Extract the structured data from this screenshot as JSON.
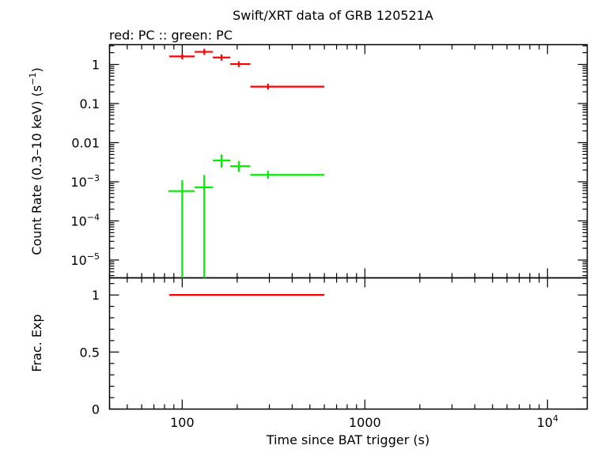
{
  "chart_data": {
    "type": "scatter",
    "title": "Swift/XRT data of GRB 120521A",
    "subtitle": "red: PC  :: green: PC",
    "xlabel": "Time since BAT trigger (s)",
    "x_scale": "log",
    "xlim": [
      40,
      16500
    ],
    "x_ticks": [
      {
        "value": 100,
        "label": "100"
      },
      {
        "value": 1000,
        "label": "1000"
      },
      {
        "value": 10000,
        "label": "10",
        "sup": "4"
      }
    ],
    "panels": [
      {
        "name": "rate",
        "ylabel": "Count Rate (0.3–10 keV) (s",
        "ylabel_sup": "−1",
        "ylabel_end": ")",
        "y_scale": "log",
        "ylim": [
          3.5e-06,
          3.2
        ],
        "y_ticks": [
          {
            "value": 1,
            "label": "1"
          },
          {
            "value": 0.1,
            "label": "0.1"
          },
          {
            "value": 0.01,
            "label": "0.01"
          },
          {
            "value": 0.001,
            "label": "10",
            "sup": "−3"
          },
          {
            "value": 0.0001,
            "label": "10",
            "sup": "−4"
          },
          {
            "value": 1e-05,
            "label": "10",
            "sup": "−5"
          }
        ],
        "series": [
          {
            "color": "#ff0000",
            "points": [
              {
                "x": 100,
                "xlo": 85,
                "xhi": 117,
                "y": 1.6,
                "ylo": 1.35,
                "yhi": 1.85
              },
              {
                "x": 132,
                "xlo": 117,
                "xhi": 147,
                "y": 2.1,
                "ylo": 1.75,
                "yhi": 2.5
              },
              {
                "x": 164,
                "xlo": 147,
                "xhi": 183,
                "y": 1.5,
                "ylo": 1.25,
                "yhi": 1.8
              },
              {
                "x": 204,
                "xlo": 183,
                "xhi": 236,
                "y": 1.02,
                "ylo": 0.86,
                "yhi": 1.2
              },
              {
                "x": 295,
                "xlo": 236,
                "xhi": 600,
                "y": 0.27,
                "ylo": 0.23,
                "yhi": 0.32
              }
            ]
          },
          {
            "color": "#00ee00",
            "points": [
              {
                "x": 100,
                "xlo": 84,
                "xhi": 117,
                "y": 0.00058,
                "ylo": 1e-06,
                "yhi": 0.0011
              },
              {
                "x": 132,
                "xlo": 117,
                "xhi": 147,
                "y": 0.00072,
                "ylo": 1e-06,
                "yhi": 0.0015
              },
              {
                "x": 164,
                "xlo": 147,
                "xhi": 183,
                "y": 0.0035,
                "ylo": 0.0023,
                "yhi": 0.005
              },
              {
                "x": 204,
                "xlo": 183,
                "xhi": 236,
                "y": 0.0025,
                "ylo": 0.0018,
                "yhi": 0.0034
              },
              {
                "x": 295,
                "xlo": 236,
                "xhi": 600,
                "y": 0.0015,
                "ylo": 0.0012,
                "yhi": 0.0019
              }
            ]
          }
        ]
      },
      {
        "name": "fracexp",
        "ylabel": "Frac. Exp",
        "y_scale": "linear",
        "ylim": [
          0,
          1.15
        ],
        "y_ticks": [
          {
            "value": 1,
            "label": "1"
          },
          {
            "value": 0.5,
            "label": "0.5"
          },
          {
            "value": 0,
            "label": "0"
          }
        ],
        "series": [
          {
            "color": "#ff0000",
            "segments": [
              {
                "xlo": 85,
                "xhi": 600,
                "y": 1
              }
            ]
          }
        ]
      }
    ]
  }
}
